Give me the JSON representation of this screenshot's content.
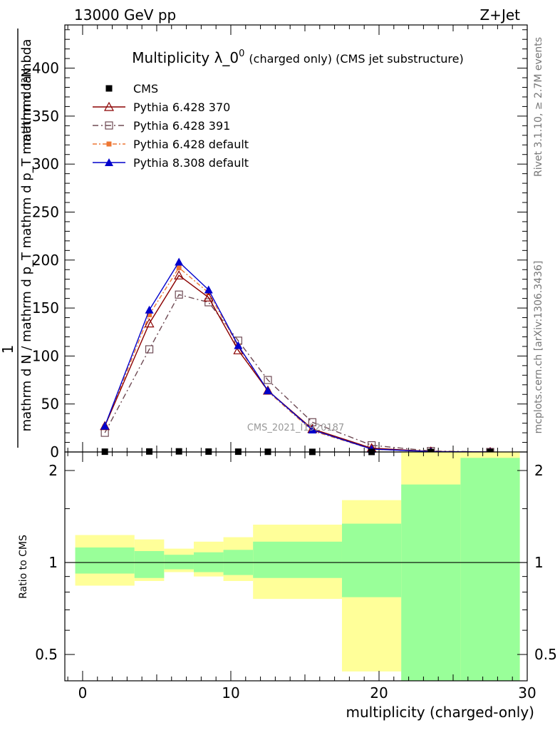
{
  "header": {
    "left": "13000 GeV pp",
    "right": "Z+Jet"
  },
  "side_labels": {
    "top": "Rivet 3.1.10, ≥ 2.7M events",
    "bottom": "mcplots.cern.ch [arXiv:1306.3436]"
  },
  "watermark": "CMS_2021_I1920187",
  "colors": {
    "cms": "#000000",
    "p370": "#8b0000",
    "p391": "#6e4a54",
    "p6def": "#ee7733",
    "p8def": "#0000cc",
    "band_inner": "#99ff99",
    "band_outer": "#ffff99"
  },
  "chart_data": [
    {
      "type": "line",
      "title": "Multiplicity λ_0⁰",
      "title_main": "Multiplicity λ_0",
      "title_sup": "0",
      "title_suffix": "(charged only) (CMS jet substructure)",
      "ylabel": "1 / mathrm d N / mathrm d p_T mathrm d p_T mathrm d lambda  mathrm d N",
      "ylabel_num": "mathrm d²N",
      "ylabel_den": "mathrm d N / mathrm d p_T mathrm d p_T mathrm d lambda",
      "ylabel_one": "1",
      "xlim": [
        -1.2,
        30
      ],
      "ylim": [
        0,
        445
      ],
      "yticks": [
        0,
        50,
        100,
        150,
        200,
        250,
        300,
        350,
        400
      ],
      "legend_position": "top-left",
      "series": [
        {
          "name": "CMS",
          "marker": "square",
          "x": [
            1.5,
            4.5,
            6.5,
            8.5,
            10.5,
            12.5,
            15.5,
            19.5,
            23.5,
            27.5
          ],
          "y": [
            0.3,
            0.5,
            0.6,
            0.4,
            0.3,
            0.2,
            0.1,
            0.05,
            0.02,
            0.01
          ]
        },
        {
          "name": "Pythia 6.428 370",
          "marker": "triangle-open",
          "x": [
            1.5,
            4.5,
            6.5,
            8.5,
            10.5,
            12.5,
            15.5,
            19.5,
            23.5,
            27.5
          ],
          "y": [
            27,
            134,
            184,
            161,
            106,
            64,
            24,
            4,
            0.5,
            0
          ]
        },
        {
          "name": "Pythia 6.428 391",
          "marker": "square-open",
          "x": [
            1.5,
            4.5,
            6.5,
            8.5,
            10.5,
            12.5,
            15.5,
            19.5,
            23.5,
            27.5
          ],
          "y": [
            20,
            107,
            164,
            156,
            116,
            75,
            31,
            7,
            1,
            0
          ]
        },
        {
          "name": "Pythia 6.428 default",
          "marker": "square-filled",
          "x": [
            1.5,
            4.5,
            6.5,
            8.5,
            10.5,
            12.5,
            15.5,
            19.5,
            23.5,
            27.5
          ],
          "y": [
            26,
            143,
            192,
            166,
            110,
            63,
            22,
            3,
            0.4,
            0
          ]
        },
        {
          "name": "Pythia 8.308 default",
          "marker": "triangle-filled",
          "x": [
            1.5,
            4.5,
            6.5,
            8.5,
            10.5,
            12.5,
            15.5,
            19.5,
            23.5,
            27.5
          ],
          "y": [
            27,
            148,
            198,
            169,
            111,
            64,
            23,
            3,
            0.4,
            0
          ]
        }
      ]
    },
    {
      "type": "area",
      "ylabel": "Ratio to CMS",
      "xlabel": "multiplicity (charged-only)",
      "xlim": [
        -1.2,
        30
      ],
      "ylim": [
        0.41,
        2.3
      ],
      "ylog": true,
      "xticks": [
        0,
        10,
        20,
        30
      ],
      "yticks": [
        0.5,
        1,
        2
      ],
      "reference_line": 1,
      "bins": [
        {
          "x0": -0.5,
          "x1": 3.5,
          "inner": [
            0.92,
            1.12
          ],
          "outer": [
            0.84,
            1.23
          ]
        },
        {
          "x0": 3.5,
          "x1": 5.5,
          "inner": [
            0.89,
            1.09
          ],
          "outer": [
            0.87,
            1.19
          ]
        },
        {
          "x0": 5.5,
          "x1": 7.5,
          "inner": [
            0.95,
            1.06
          ],
          "outer": [
            0.93,
            1.11
          ]
        },
        {
          "x0": 7.5,
          "x1": 9.5,
          "inner": [
            0.93,
            1.08
          ],
          "outer": [
            0.9,
            1.17
          ]
        },
        {
          "x0": 9.5,
          "x1": 11.5,
          "inner": [
            0.91,
            1.1
          ],
          "outer": [
            0.87,
            1.21
          ]
        },
        {
          "x0": 11.5,
          "x1": 17.5,
          "inner": [
            0.89,
            1.17
          ],
          "outer": [
            0.76,
            1.33
          ]
        },
        {
          "x0": 17.5,
          "x1": 21.5,
          "inner": [
            0.77,
            1.34
          ],
          "outer": [
            0.44,
            1.6
          ]
        },
        {
          "x0": 21.5,
          "x1": 25.5,
          "inner": [
            0.41,
            1.8
          ],
          "outer": [
            0.41,
            2.3
          ]
        },
        {
          "x0": 25.5,
          "x1": 29.5,
          "inner": [
            0.41,
            2.2
          ],
          "outer": [
            0.41,
            2.3
          ]
        }
      ]
    }
  ]
}
